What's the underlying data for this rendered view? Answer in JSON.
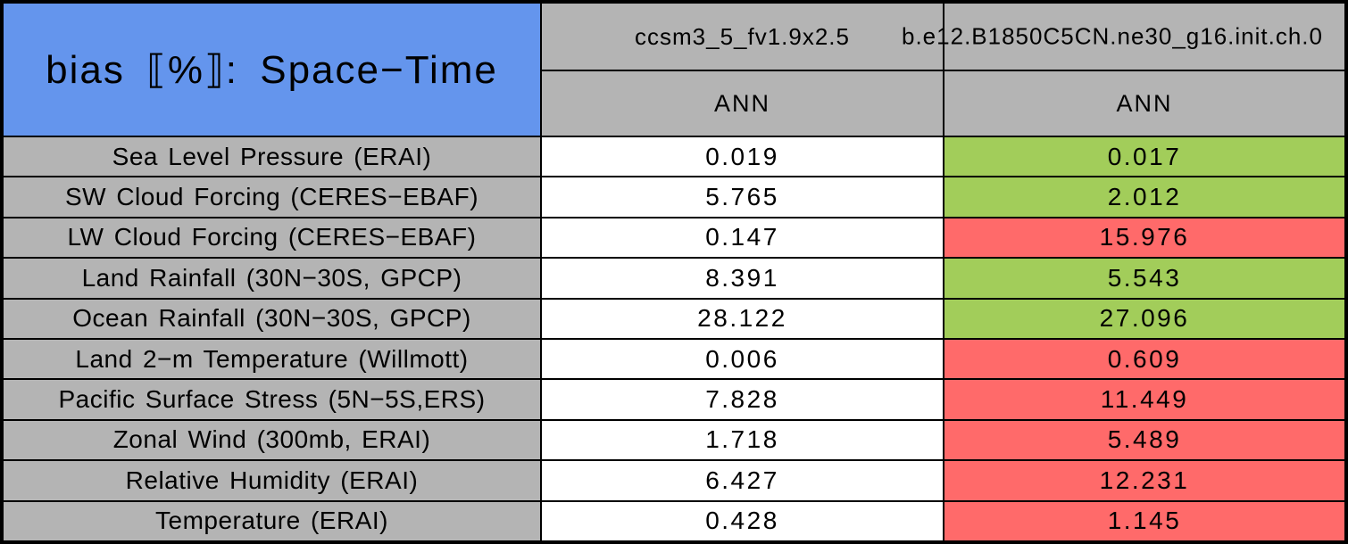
{
  "chart_data": {
    "type": "table",
    "title": "bias ⟦%⟧: Space−Time",
    "model_columns": [
      "ccsm3_5_fv1.9x2.5",
      "b.e12.B1850C5CN.ne30_g16.init.ch.0"
    ],
    "season_labels": [
      "ANN",
      "ANN"
    ],
    "rows": [
      {
        "label": "Sea Level Pressure (ERAI)",
        "control_value": "0.019",
        "case_value": "0.017",
        "case_flag": "better",
        "case_bg": "#A2CD5A"
      },
      {
        "label": "SW Cloud Forcing (CERES−EBAF)",
        "control_value": "5.765",
        "case_value": "2.012",
        "case_flag": "better",
        "case_bg": "#A2CD5A"
      },
      {
        "label": "LW Cloud Forcing (CERES−EBAF)",
        "control_value": "0.147",
        "case_value": "15.976",
        "case_flag": "worse",
        "case_bg": "#FF6A6A"
      },
      {
        "label": "Land Rainfall (30N−30S, GPCP)",
        "control_value": "8.391",
        "case_value": "5.543",
        "case_flag": "better",
        "case_bg": "#A2CD5A"
      },
      {
        "label": "Ocean Rainfall (30N−30S, GPCP)",
        "control_value": "28.122",
        "case_value": "27.096",
        "case_flag": "better",
        "case_bg": "#A2CD5A"
      },
      {
        "label": "Land 2−m Temperature (Willmott)",
        "control_value": "0.006",
        "case_value": "0.609",
        "case_flag": "worse",
        "case_bg": "#FF6A6A"
      },
      {
        "label": "Pacific Surface Stress (5N−5S,ERS)",
        "control_value": "7.828",
        "case_value": "11.449",
        "case_flag": "worse",
        "case_bg": "#FF6A6A"
      },
      {
        "label": "Zonal Wind (300mb, ERAI)",
        "control_value": "1.718",
        "case_value": "5.489",
        "case_flag": "worse",
        "case_bg": "#FF6A6A"
      },
      {
        "label": "Relative Humidity (ERAI)",
        "control_value": "6.427",
        "case_value": "12.231",
        "case_flag": "worse",
        "case_bg": "#FF6A6A"
      },
      {
        "label": "Temperature (ERAI)",
        "control_value": "0.428",
        "case_value": "1.145",
        "case_flag": "worse",
        "case_bg": "#FF6A6A"
      }
    ],
    "colors": {
      "title_bg": "#6495ED",
      "header_bg": "#B4B4B4",
      "label_bg": "#B4B4B4",
      "control_bg": "#FFFFFF",
      "better_green": "#A2CD5A",
      "worse_red": "#FF6A6A",
      "border": "#000000"
    }
  }
}
